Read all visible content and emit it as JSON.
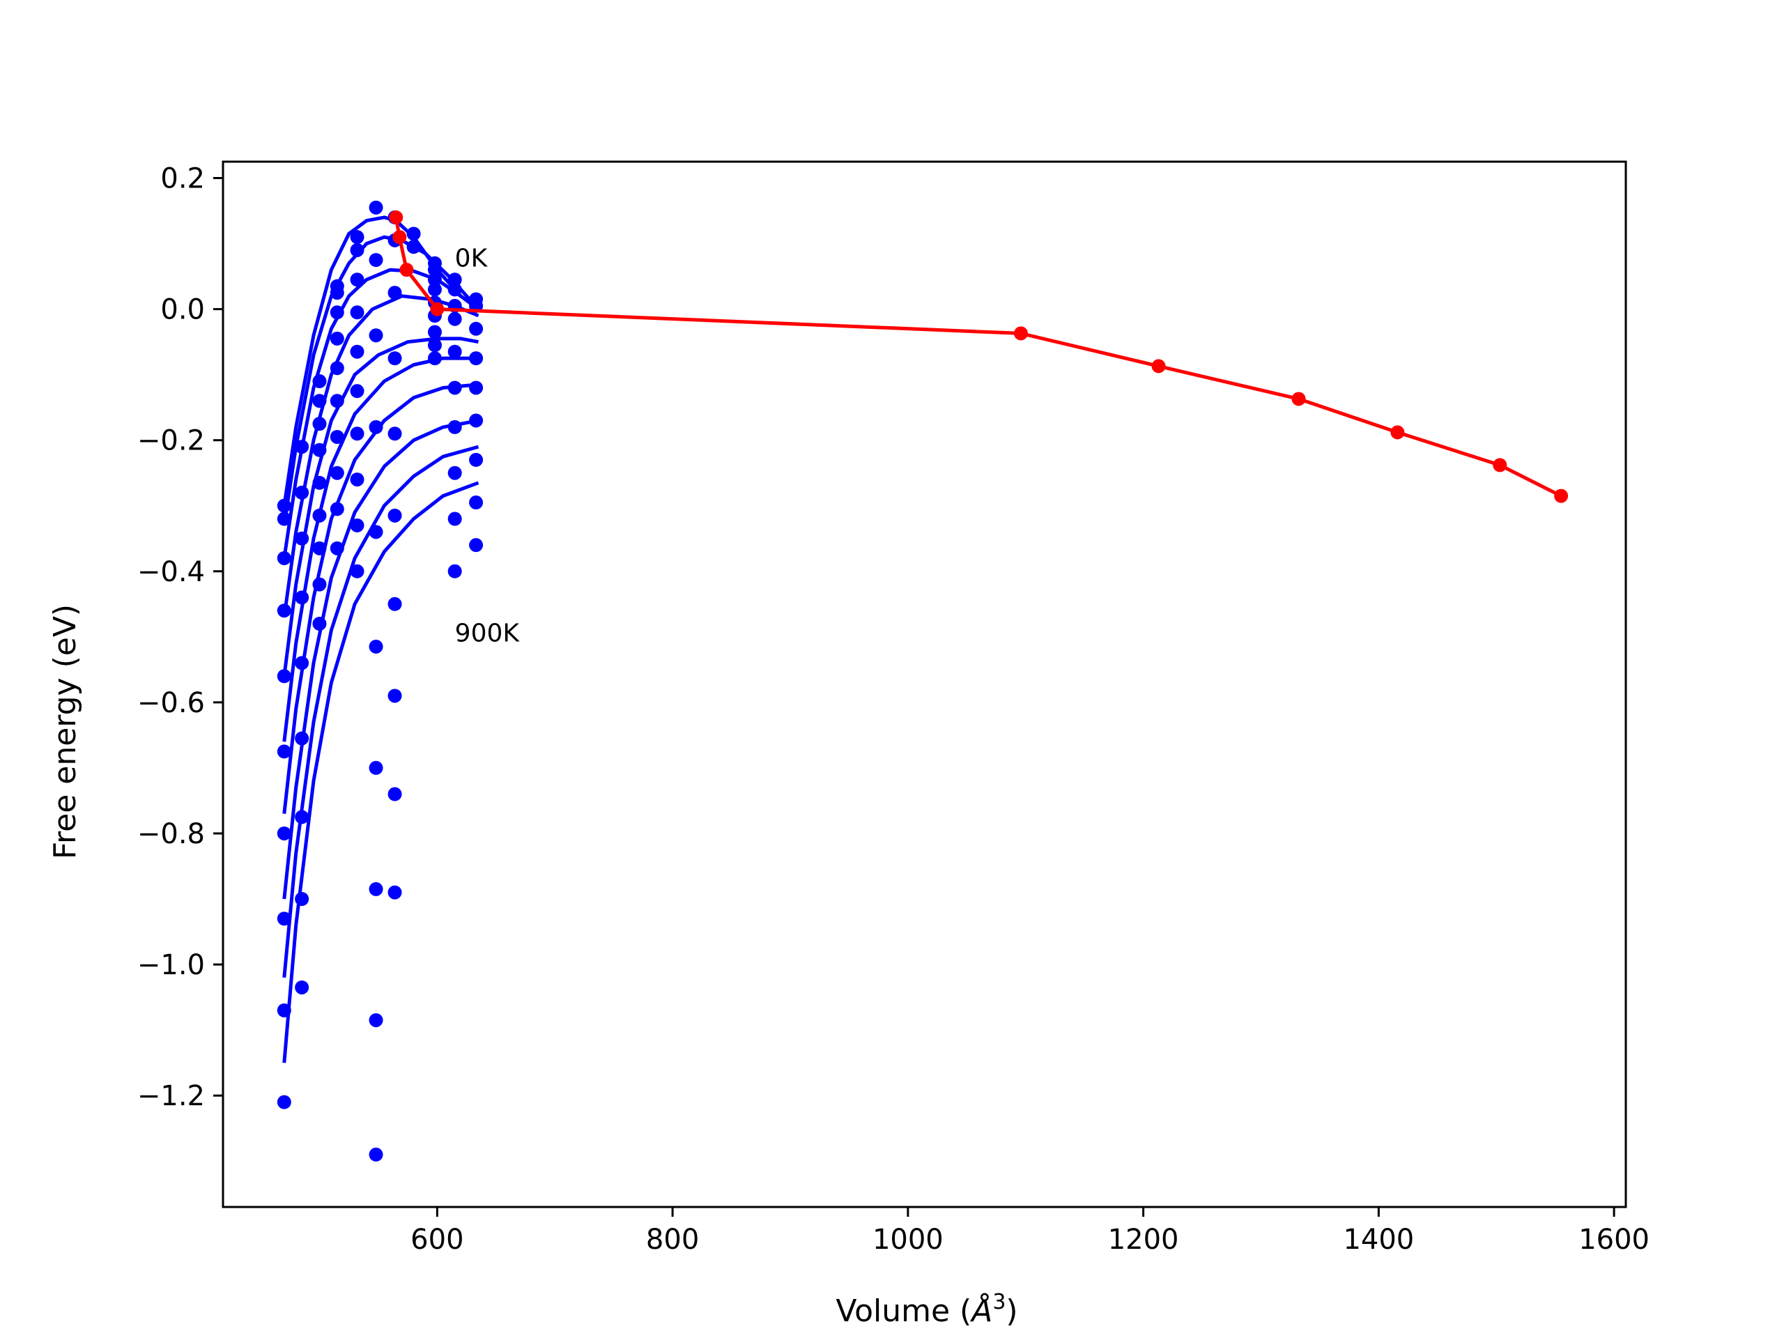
{
  "chart_data": {
    "type": "line",
    "title": "",
    "xlabel": "Volume (Å³)",
    "xlabel_parts": {
      "prefix": "Volume (",
      "symbol": "Å",
      "superscript": "3",
      "suffix": ")"
    },
    "ylabel": "Free energy (eV)",
    "xlim": [
      418,
      1610
    ],
    "ylim": [
      -1.37,
      0.225
    ],
    "xticks": [
      600,
      800,
      1000,
      1200,
      1400,
      1600
    ],
    "xtick_labels": [
      "600",
      "800",
      "1000",
      "1200",
      "1400",
      "1600"
    ],
    "yticks": [
      0.2,
      0.0,
      -0.2,
      -0.4,
      -0.6,
      -0.8,
      -1.0,
      -1.2
    ],
    "ytick_labels": [
      "0.2",
      "0.0",
      "−0.2",
      "−0.4",
      "−0.6",
      "−0.8",
      "−1.0",
      "−1.2"
    ],
    "grid": false,
    "legend": "none",
    "colors": {
      "curves": "#0000ff",
      "minima": "#ff0000"
    },
    "annotations": [
      {
        "text": "0K",
        "x": 615,
        "y": 0.065
      },
      {
        "text": "900K",
        "x": 615,
        "y": -0.507
      }
    ],
    "fit_curves": [
      {
        "xs": [
          470,
          480,
          495,
          510,
          525,
          540,
          555,
          565,
          580,
          600,
          620,
          635
        ],
        "ys": [
          -0.3,
          -0.18,
          -0.04,
          0.06,
          0.115,
          0.135,
          0.14,
          0.135,
          0.11,
          0.06,
          0.02,
          0.0
        ]
      },
      {
        "xs": [
          470,
          480,
          495,
          510,
          525,
          540,
          555,
          570,
          590,
          610,
          635
        ],
        "ys": [
          -0.33,
          -0.21,
          -0.07,
          0.02,
          0.07,
          0.1,
          0.11,
          0.105,
          0.085,
          0.05,
          0.0
        ]
      },
      {
        "xs": [
          470,
          480,
          495,
          510,
          525,
          540,
          560,
          580,
          600,
          620,
          635
        ],
        "ys": [
          -0.38,
          -0.26,
          -0.12,
          -0.03,
          0.02,
          0.045,
          0.06,
          0.058,
          0.045,
          0.02,
          0.0
        ]
      },
      {
        "xs": [
          470,
          480,
          495,
          510,
          525,
          545,
          570,
          595,
          615,
          635
        ],
        "ys": [
          -0.47,
          -0.34,
          -0.2,
          -0.1,
          -0.04,
          0.0,
          0.02,
          0.015,
          0.005,
          -0.01
        ]
      },
      {
        "xs": [
          470,
          480,
          495,
          510,
          530,
          550,
          575,
          600,
          620,
          635
        ],
        "ys": [
          -0.56,
          -0.42,
          -0.27,
          -0.17,
          -0.1,
          -0.07,
          -0.05,
          -0.045,
          -0.045,
          -0.05
        ]
      },
      {
        "xs": [
          470,
          480,
          495,
          510,
          530,
          555,
          580,
          605,
          635
        ],
        "ys": [
          -0.66,
          -0.51,
          -0.35,
          -0.24,
          -0.16,
          -0.11,
          -0.085,
          -0.075,
          -0.075
        ]
      },
      {
        "xs": [
          470,
          480,
          495,
          510,
          530,
          555,
          580,
          605,
          635
        ],
        "ys": [
          -0.77,
          -0.61,
          -0.44,
          -0.32,
          -0.23,
          -0.17,
          -0.135,
          -0.12,
          -0.115
        ]
      },
      {
        "xs": [
          470,
          480,
          495,
          510,
          530,
          555,
          580,
          605,
          635
        ],
        "ys": [
          -0.9,
          -0.73,
          -0.54,
          -0.41,
          -0.31,
          -0.24,
          -0.2,
          -0.18,
          -0.17
        ]
      },
      {
        "xs": [
          470,
          480,
          495,
          510,
          530,
          555,
          580,
          605,
          635
        ],
        "ys": [
          -1.02,
          -0.83,
          -0.63,
          -0.49,
          -0.38,
          -0.3,
          -0.255,
          -0.225,
          -0.21
        ]
      },
      {
        "xs": [
          470,
          480,
          495,
          510,
          530,
          555,
          580,
          605,
          635
        ],
        "ys": [
          -1.15,
          -0.94,
          -0.72,
          -0.57,
          -0.45,
          -0.37,
          -0.32,
          -0.285,
          -0.265
        ]
      }
    ],
    "points": [
      {
        "x": 470,
        "y": -0.3
      },
      {
        "x": 470,
        "y": -0.32
      },
      {
        "x": 470,
        "y": -0.38
      },
      {
        "x": 470,
        "y": -0.46
      },
      {
        "x": 470,
        "y": -0.56
      },
      {
        "x": 470,
        "y": -0.675
      },
      {
        "x": 470,
        "y": -0.8
      },
      {
        "x": 470,
        "y": -0.93
      },
      {
        "x": 470,
        "y": -1.07
      },
      {
        "x": 470,
        "y": -1.21
      },
      {
        "x": 485,
        "y": -0.21
      },
      {
        "x": 485,
        "y": -0.28
      },
      {
        "x": 485,
        "y": -0.35
      },
      {
        "x": 485,
        "y": -0.44
      },
      {
        "x": 485,
        "y": -0.54
      },
      {
        "x": 485,
        "y": -0.655
      },
      {
        "x": 485,
        "y": -0.775
      },
      {
        "x": 485,
        "y": -0.9
      },
      {
        "x": 485,
        "y": -1.035
      },
      {
        "x": 500,
        "y": -0.11
      },
      {
        "x": 500,
        "y": -0.14
      },
      {
        "x": 500,
        "y": -0.175
      },
      {
        "x": 500,
        "y": -0.215
      },
      {
        "x": 500,
        "y": -0.265
      },
      {
        "x": 500,
        "y": -0.315
      },
      {
        "x": 500,
        "y": -0.365
      },
      {
        "x": 500,
        "y": -0.42
      },
      {
        "x": 500,
        "y": -0.48
      },
      {
        "x": 515,
        "y": 0.035
      },
      {
        "x": 515,
        "y": 0.025
      },
      {
        "x": 515,
        "y": -0.005
      },
      {
        "x": 515,
        "y": -0.045
      },
      {
        "x": 515,
        "y": -0.09
      },
      {
        "x": 515,
        "y": -0.14
      },
      {
        "x": 515,
        "y": -0.195
      },
      {
        "x": 515,
        "y": -0.25
      },
      {
        "x": 515,
        "y": -0.305
      },
      {
        "x": 515,
        "y": -0.365
      },
      {
        "x": 532,
        "y": 0.11
      },
      {
        "x": 532,
        "y": 0.09
      },
      {
        "x": 532,
        "y": 0.045
      },
      {
        "x": 532,
        "y": -0.005
      },
      {
        "x": 532,
        "y": -0.065
      },
      {
        "x": 532,
        "y": -0.125
      },
      {
        "x": 532,
        "y": -0.19
      },
      {
        "x": 532,
        "y": -0.26
      },
      {
        "x": 532,
        "y": -0.33
      },
      {
        "x": 532,
        "y": -0.4
      },
      {
        "x": 548,
        "y": 0.155
      },
      {
        "x": 548,
        "y": 0.075
      },
      {
        "x": 548,
        "y": -0.04
      },
      {
        "x": 548,
        "y": -0.18
      },
      {
        "x": 548,
        "y": -0.34
      },
      {
        "x": 548,
        "y": -0.515
      },
      {
        "x": 548,
        "y": -0.7
      },
      {
        "x": 548,
        "y": -0.885
      },
      {
        "x": 548,
        "y": -1.085
      },
      {
        "x": 548,
        "y": -1.29
      },
      {
        "x": 564,
        "y": 0.14
      },
      {
        "x": 564,
        "y": 0.105
      },
      {
        "x": 564,
        "y": 0.025
      },
      {
        "x": 564,
        "y": -0.075
      },
      {
        "x": 564,
        "y": -0.19
      },
      {
        "x": 564,
        "y": -0.315
      },
      {
        "x": 564,
        "y": -0.45
      },
      {
        "x": 564,
        "y": -0.59
      },
      {
        "x": 564,
        "y": -0.74
      },
      {
        "x": 564,
        "y": -0.89
      },
      {
        "x": 580,
        "y": 0.115
      },
      {
        "x": 580,
        "y": 0.095
      },
      {
        "x": 598,
        "y": 0.07
      },
      {
        "x": 598,
        "y": 0.06
      },
      {
        "x": 598,
        "y": 0.045
      },
      {
        "x": 598,
        "y": 0.03
      },
      {
        "x": 598,
        "y": 0.01
      },
      {
        "x": 598,
        "y": -0.01
      },
      {
        "x": 598,
        "y": -0.035
      },
      {
        "x": 598,
        "y": -0.055
      },
      {
        "x": 598,
        "y": -0.075
      },
      {
        "x": 615,
        "y": 0.045
      },
      {
        "x": 615,
        "y": 0.03
      },
      {
        "x": 615,
        "y": 0.005
      },
      {
        "x": 615,
        "y": -0.015
      },
      {
        "x": 615,
        "y": -0.065
      },
      {
        "x": 615,
        "y": -0.12
      },
      {
        "x": 615,
        "y": -0.18
      },
      {
        "x": 615,
        "y": -0.25
      },
      {
        "x": 615,
        "y": -0.32
      },
      {
        "x": 615,
        "y": -0.4
      },
      {
        "x": 633,
        "y": 0.015
      },
      {
        "x": 633,
        "y": 0.005
      },
      {
        "x": 633,
        "y": -0.03
      },
      {
        "x": 633,
        "y": -0.075
      },
      {
        "x": 633,
        "y": -0.12
      },
      {
        "x": 633,
        "y": -0.17
      },
      {
        "x": 633,
        "y": -0.23
      },
      {
        "x": 633,
        "y": -0.295
      },
      {
        "x": 633,
        "y": -0.36
      }
    ],
    "minima": {
      "x": [
        565,
        568,
        574,
        600,
        1096,
        1213,
        1332,
        1416,
        1503,
        1555
      ],
      "y": [
        0.14,
        0.11,
        0.06,
        0.0,
        -0.037,
        -0.087,
        -0.137,
        -0.188,
        -0.238,
        -0.285
      ]
    }
  }
}
